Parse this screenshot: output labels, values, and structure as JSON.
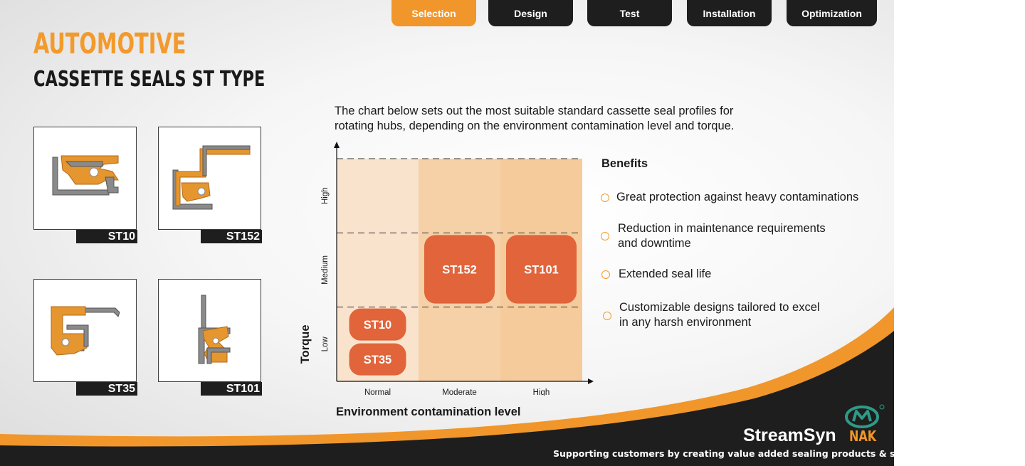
{
  "nav": {
    "tabs": [
      {
        "label": "Selection",
        "active": true
      },
      {
        "label": "Design",
        "active": false
      },
      {
        "label": "Test",
        "active": false
      },
      {
        "label": "Installation",
        "active": false
      },
      {
        "label": "Optimization",
        "active": false
      }
    ]
  },
  "header": {
    "title": "AUTOMOTIVE",
    "subtitle": "CASSETTE SEALS  ST TYPE"
  },
  "products": [
    "ST10",
    "ST152",
    "ST35",
    "ST101"
  ],
  "intro": {
    "line1": "The chart below sets out the most suitable standard cassette seal profiles for",
    "line2": "rotating hubs, depending on the environment contamination level and torque."
  },
  "chart_data": {
    "type": "heatmap",
    "xlabel": "Environment contamination level",
    "ylabel": "Torque",
    "x_categories": [
      "Normal",
      "Moderate",
      "High"
    ],
    "y_categories": [
      "Low",
      "Medium",
      "High"
    ],
    "cells": [
      {
        "x": "Normal",
        "y": "Low",
        "items": [
          "ST10",
          "ST35"
        ]
      },
      {
        "x": "Moderate",
        "y": "Medium",
        "items": [
          "ST152"
        ]
      },
      {
        "x": "High",
        "y": "Medium",
        "items": [
          "ST101"
        ]
      }
    ],
    "column_colors": [
      "#fae3cc",
      "#f6d1a8",
      "#f5cb9c"
    ],
    "badge_color": "#e1643a",
    "grid": "dashed horizontal",
    "legend": "none"
  },
  "benefits": {
    "title": "Benefits",
    "items": [
      {
        "line1": "Great protection against heavy contaminations",
        "line2": ""
      },
      {
        "line1": "Reduction in maintenance requirements",
        "line2": "and downtime"
      },
      {
        "line1": "Extended seal life",
        "line2": ""
      },
      {
        "line1": "Customizable designs tailored to excel",
        "line2": "in any harsh environment"
      }
    ]
  },
  "footer": {
    "brand": "StreamSyn",
    "logo_text": "NAK",
    "tagline": "Supporting customers by creating value added sealing products & solutions"
  },
  "colors": {
    "accent_orange": "#f1962a",
    "dark": "#1e1e1e",
    "seal_orange": "#e6962e",
    "seal_grey": "#8a8a8a",
    "logo_green": "#2f9a86"
  }
}
